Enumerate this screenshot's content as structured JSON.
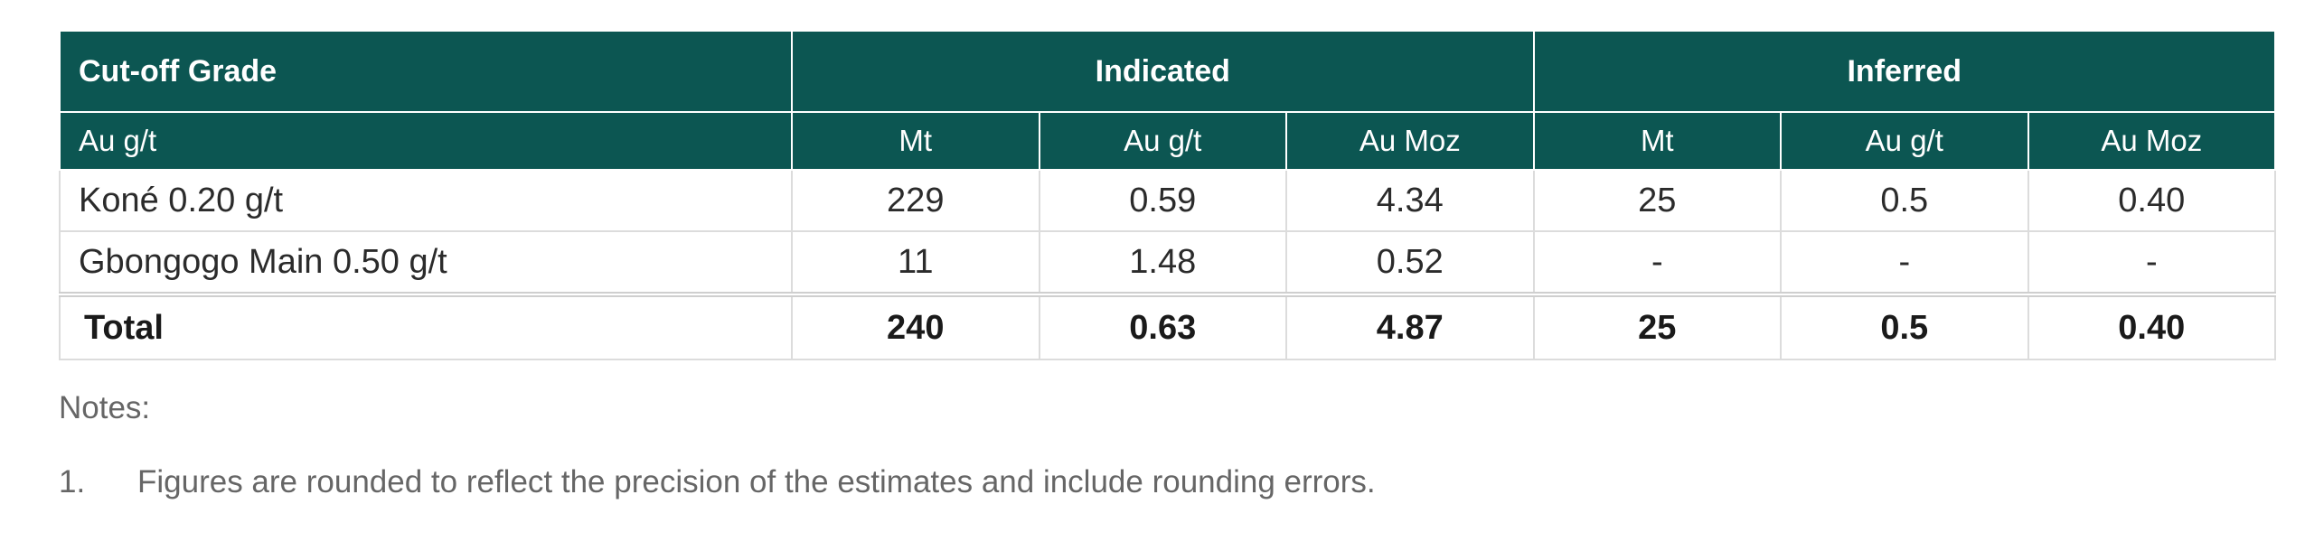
{
  "table": {
    "header_row1": {
      "grade": "Cut-off Grade",
      "indicated": "Indicated",
      "inferred": "Inferred"
    },
    "header_row2": {
      "grade_unit": "Au g/t",
      "indicated": [
        "Mt",
        "Au g/t",
        "Au Moz"
      ],
      "inferred": [
        "Mt",
        "Au g/t",
        "Au Moz"
      ]
    },
    "rows": [
      {
        "label": "Koné 0.20 g/t",
        "values": [
          "229",
          "0.59",
          "4.34",
          "25",
          "0.5",
          "0.40"
        ]
      },
      {
        "label": "Gbongogo Main 0.50 g/t",
        "values": [
          "11",
          "1.48",
          "0.52",
          "-",
          "-",
          "-"
        ]
      }
    ],
    "total": {
      "label": "Total",
      "values": [
        "240",
        "0.63",
        "4.87",
        "25",
        "0.5",
        "0.40"
      ]
    }
  },
  "notes": {
    "title": "Notes:",
    "items": [
      {
        "number": "1.",
        "text": "Figures are rounded to reflect the precision of the estimates and include rounding errors."
      }
    ]
  },
  "colors": {
    "header_bg": "#0c5652",
    "header_text": "#ffffff",
    "border": "#dcdcdc",
    "notes_text": "#666666"
  }
}
